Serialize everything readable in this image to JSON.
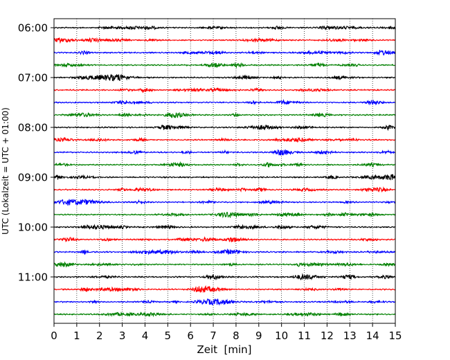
{
  "chart_data": {
    "type": "line",
    "title": "",
    "xlabel": "Zeit  [min]",
    "ylabel": "UTC (Lokalzeit = UTC + 01:00)",
    "xlim": [
      0,
      15
    ],
    "x_ticks": [
      "0",
      "1",
      "2",
      "3",
      "4",
      "5",
      "6",
      "7",
      "8",
      "9",
      "10",
      "11",
      "12",
      "13",
      "14",
      "15"
    ],
    "y_ticks": [
      "06:00",
      "07:00",
      "08:00",
      "09:00",
      "10:00",
      "11:00"
    ],
    "trace_hours": [
      "06:00",
      "06:15",
      "06:30",
      "06:45",
      "07:00",
      "07:15",
      "07:30",
      "07:45",
      "08:00",
      "08:15",
      "08:30",
      "08:45",
      "09:00",
      "09:15",
      "09:30",
      "09:45",
      "10:00",
      "10:15",
      "10:30",
      "10:45",
      "11:00",
      "11:15",
      "11:30",
      "11:45"
    ],
    "trace_colors": [
      "#000000",
      "#ff0000",
      "#0000ff",
      "#008000"
    ],
    "grid": "vertical-dotted",
    "legend": "none"
  }
}
